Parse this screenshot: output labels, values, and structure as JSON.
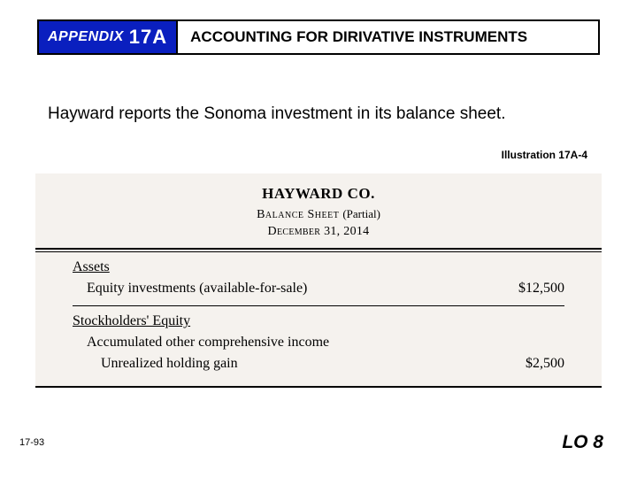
{
  "header": {
    "appendix_label": "APPENDIX",
    "appendix_number": "17A",
    "title": "ACCOUNTING FOR DIRIVATIVE INSTRUMENTS"
  },
  "intro_text": "Hayward reports the Sonoma investment in its balance sheet.",
  "illustration_label": "Illustration 17A-4",
  "balance_sheet": {
    "company": "HAYWARD CO.",
    "title_main": "Balance Sheet",
    "title_paren": "(Partial)",
    "date": "December 31, 2014",
    "section1_head": "Assets",
    "row1_label": "Equity investments (available-for-sale)",
    "row1_value": "$12,500",
    "section2_head": "Stockholders' Equity",
    "row2_label": "Accumulated other comprehensive income",
    "row3_label": "Unrealized holding gain",
    "row3_value": "$2,500"
  },
  "page_number": "17-93",
  "lo": "LO 8",
  "colors": {
    "appendix_bg": "#0a1fbf",
    "sheet_bg": "#f5f2ee",
    "text": "#000000",
    "border": "#000000"
  }
}
